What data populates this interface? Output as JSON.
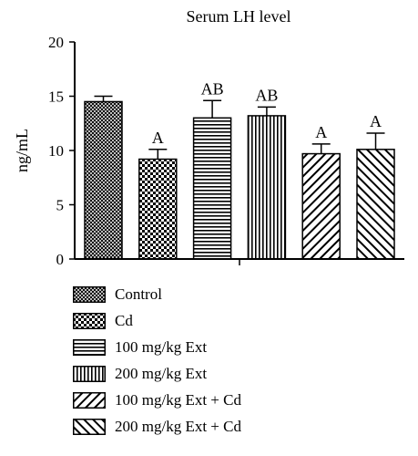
{
  "chart_data": {
    "type": "bar",
    "title": "Serum LH level",
    "ylabel": "ng/mL",
    "xlabel": "",
    "ylim": [
      0,
      20
    ],
    "yticks": [
      "0",
      "5",
      "10",
      "15",
      "20"
    ],
    "grid": false,
    "legend_position": "bottom",
    "categories": [
      "Control",
      "Cd",
      "100 mg/kg Ext",
      "200 mg/kg Ext",
      "100 mg/kg Ext + Cd",
      "200 mg/kg Ext + Cd"
    ],
    "values": [
      14.5,
      9.2,
      13.0,
      13.2,
      9.7,
      10.1
    ],
    "errors": [
      0.5,
      0.9,
      1.6,
      0.8,
      0.9,
      1.5
    ],
    "annotations": [
      "",
      "A",
      "AB",
      "AB",
      "A",
      "A"
    ],
    "patterns": [
      "crosshatch",
      "checker",
      "horizontal",
      "vertical",
      "diagonal-up",
      "diagonal-down"
    ]
  }
}
